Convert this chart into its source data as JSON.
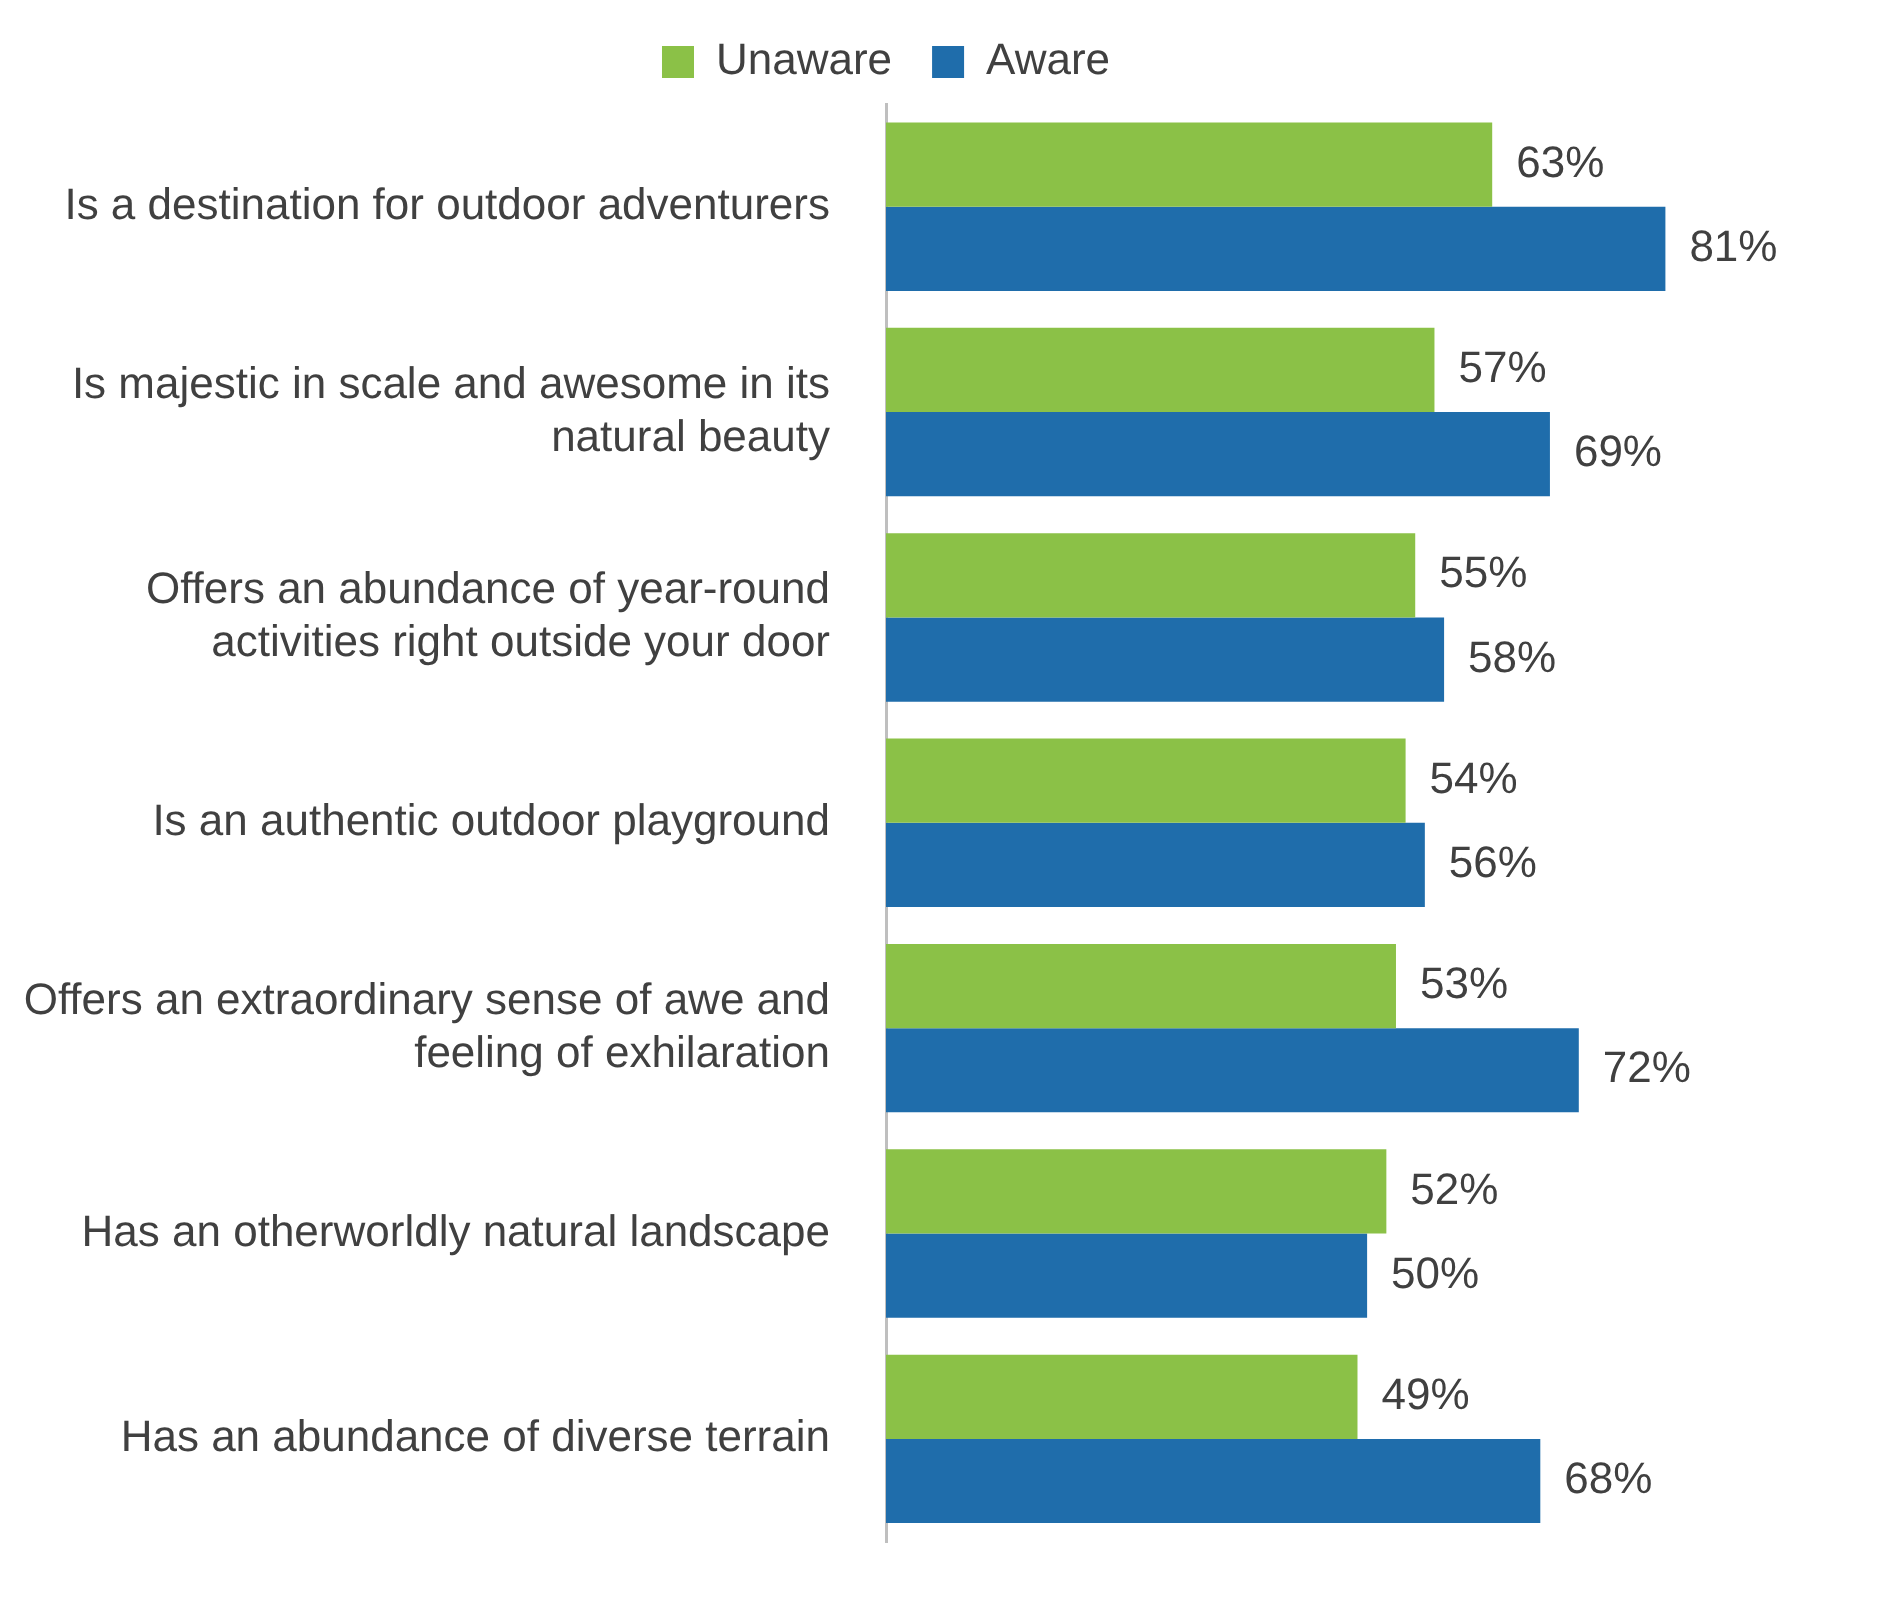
{
  "chart_data": {
    "type": "bar",
    "orientation": "horizontal",
    "legend": "top",
    "tick_labels": "y",
    "grid": false,
    "categories": [
      "Is a destination for outdoor adventurers",
      "Is majestic in scale and awesome in its natural beauty",
      "Offers an abundance of year-round activities right outside your door",
      "Is an authentic outdoor playground",
      "Offers an extraordinary sense of awe and feeling of exhilaration",
      "Has an otherworldly natural landscape",
      "Has an abundance of diverse terrain"
    ],
    "series": [
      {
        "name": "Unaware",
        "color": "#8bc147",
        "values": [
          63,
          57,
          55,
          54,
          53,
          52,
          49
        ],
        "value_labels": [
          "63%",
          "57%",
          "55%",
          "54%",
          "53%",
          "52%",
          "49%"
        ]
      },
      {
        "name": "Aware",
        "color": "#1f6dab",
        "values": [
          81,
          69,
          58,
          56,
          72,
          50,
          68
        ],
        "value_labels": [
          "81%",
          "69%",
          "58%",
          "56%",
          "72%",
          "50%",
          "68%"
        ]
      }
    ]
  }
}
